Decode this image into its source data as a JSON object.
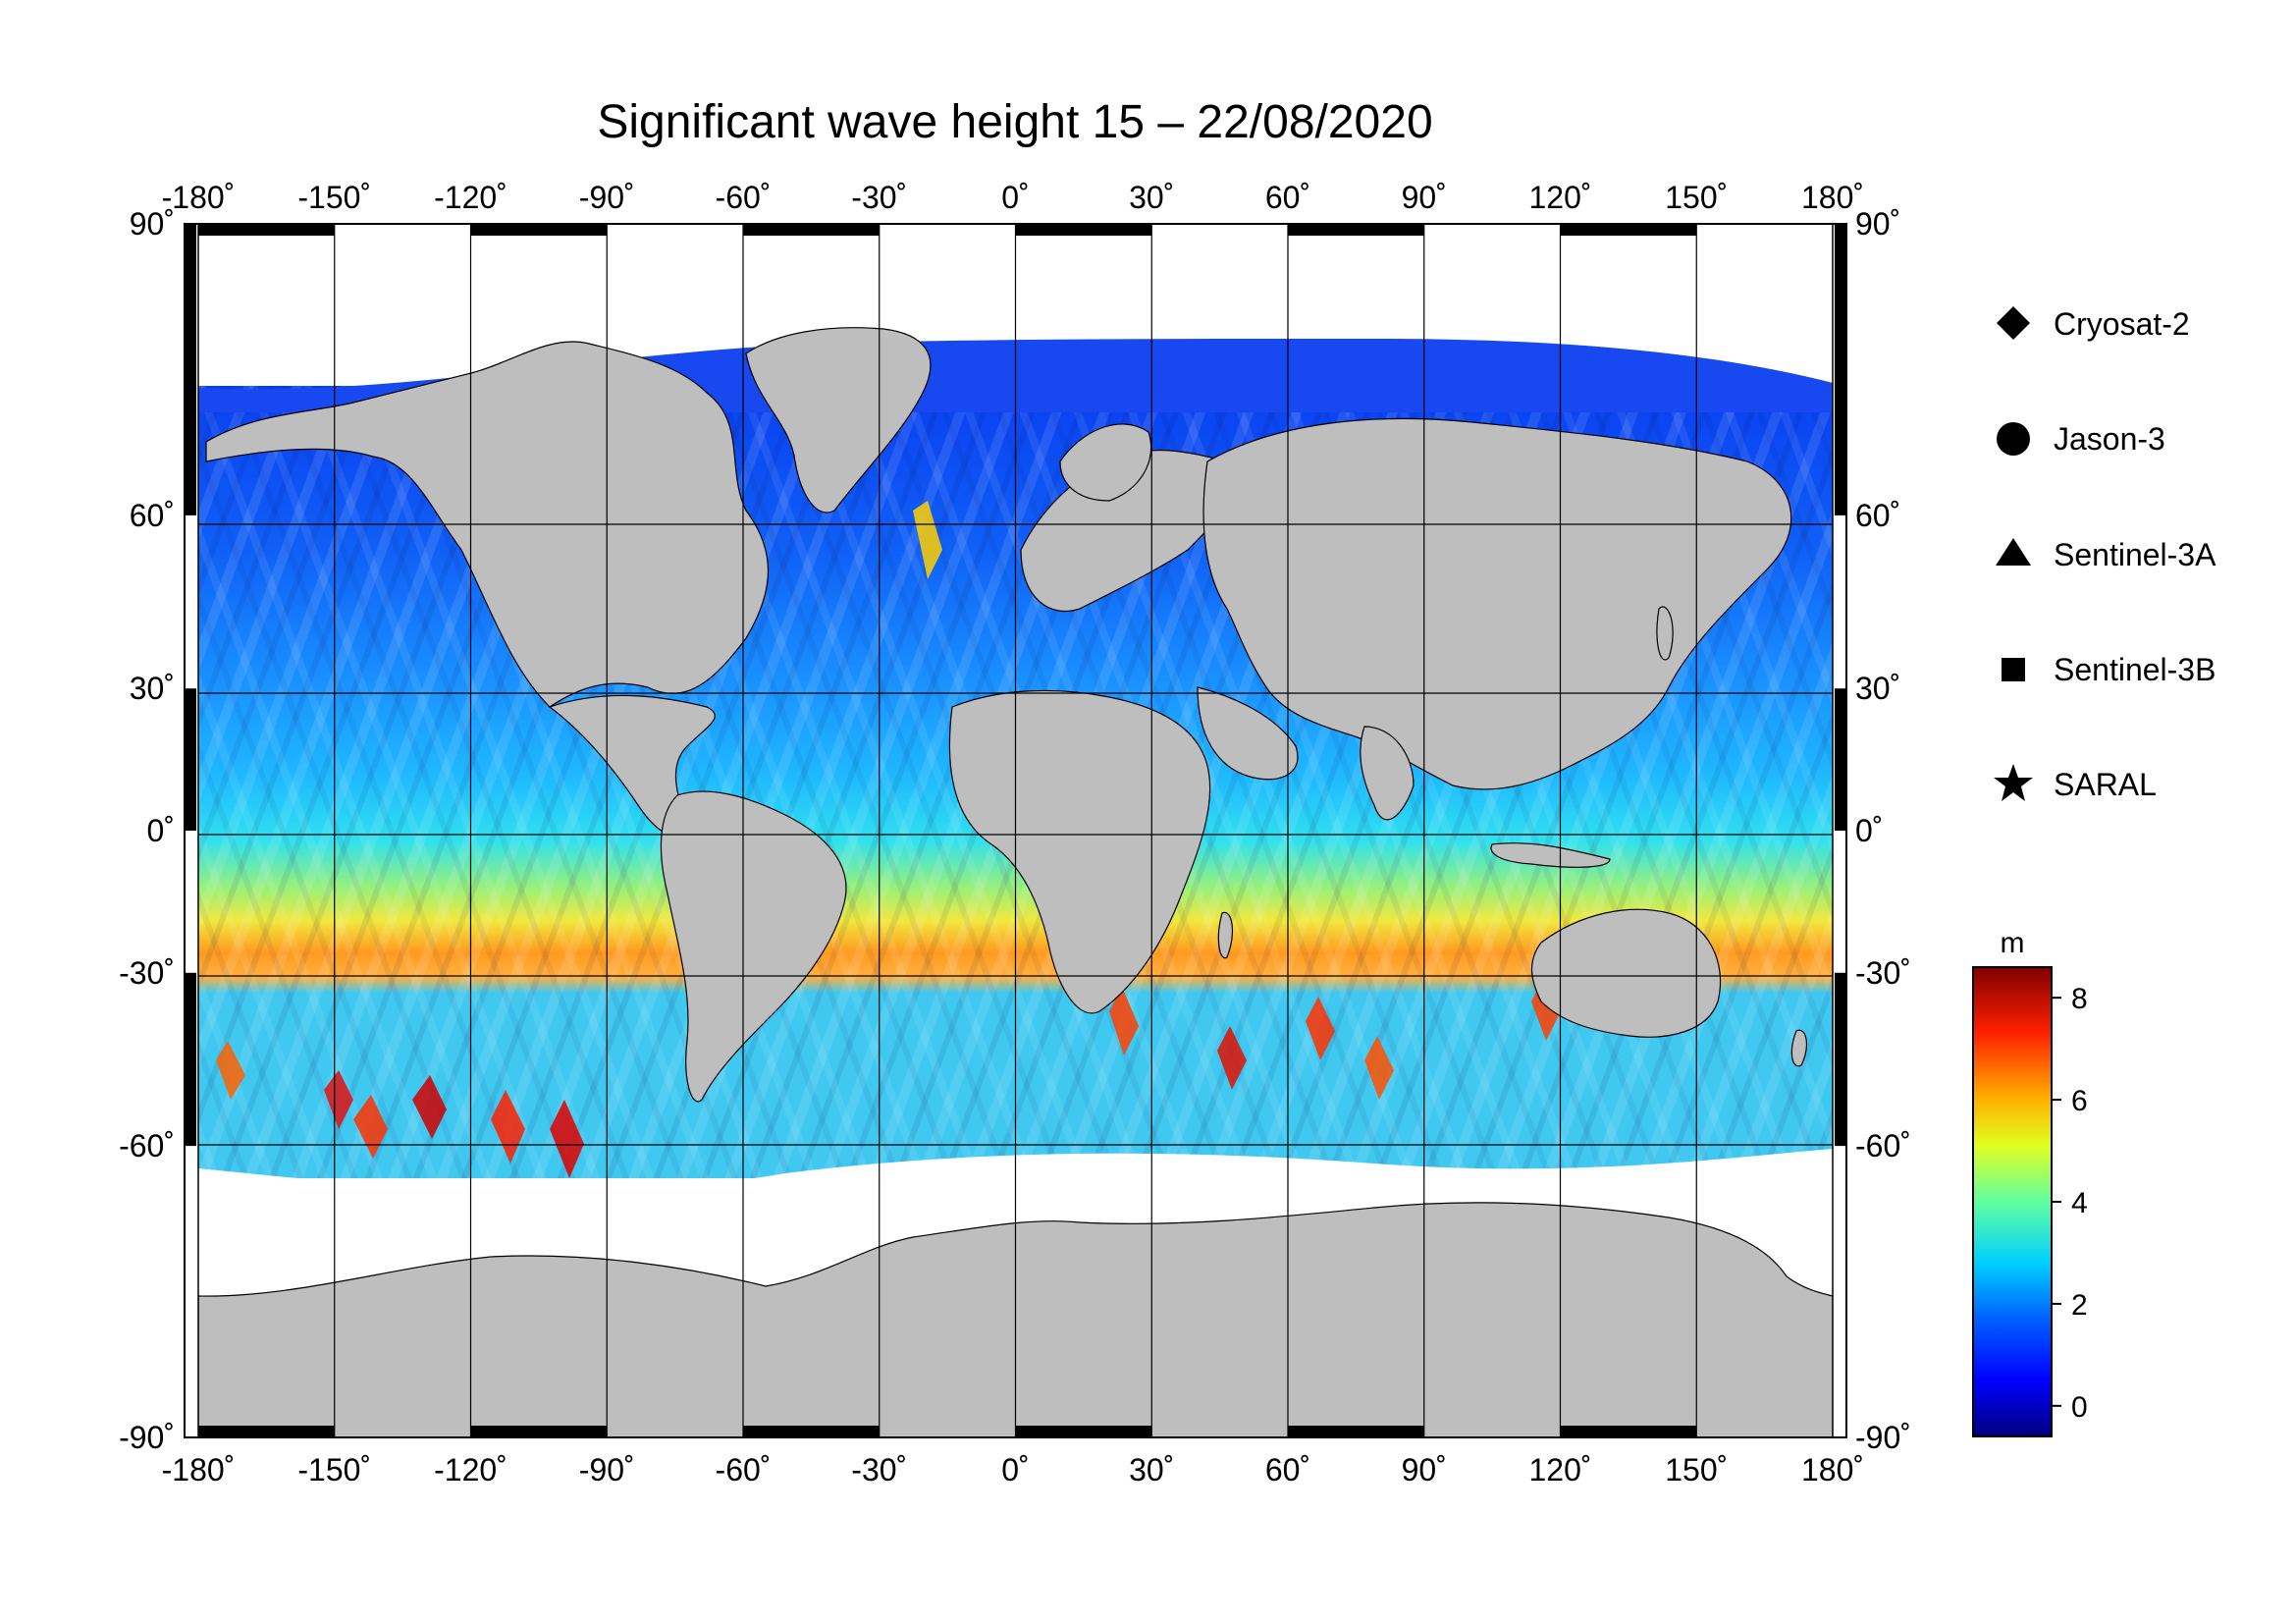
{
  "title": "Significant wave height 15 – 22/08/2020",
  "axes": {
    "lon_ticks": [
      "-180˚",
      "-150˚",
      "-120˚",
      "-90˚",
      "-60˚",
      "-30˚",
      "0˚",
      "30˚",
      "60˚",
      "90˚",
      "120˚",
      "150˚",
      "180˚"
    ],
    "lon_values": [
      -180,
      -150,
      -120,
      -90,
      -60,
      -30,
      0,
      30,
      60,
      90,
      120,
      150,
      180
    ],
    "lat_ticks": [
      "90˚",
      "60˚",
      "30˚",
      "0˚",
      "-30˚",
      "-60˚",
      "-90˚"
    ],
    "lat_values": [
      90,
      60,
      30,
      0,
      -30,
      -60,
      -90
    ],
    "lon_range": [
      -180,
      180
    ],
    "lat_range": [
      -90,
      90
    ],
    "grid": true
  },
  "legend": {
    "placement": "right",
    "items": [
      {
        "label": "Cryosat-2",
        "marker": "diamond"
      },
      {
        "label": "Jason-3",
        "marker": "circle"
      },
      {
        "label": "Sentinel-3A",
        "marker": "triangle"
      },
      {
        "label": "Sentinel-3B",
        "marker": "square"
      },
      {
        "label": "SARAL",
        "marker": "star"
      }
    ]
  },
  "colorbar": {
    "unit": "m",
    "ticks": [
      "0",
      "2",
      "4",
      "6",
      "8"
    ],
    "tick_values": [
      0,
      2,
      4,
      6,
      8
    ],
    "range": [
      -0.6,
      8.6
    ],
    "colormap": [
      "#00007f",
      "#0000ff",
      "#007fff",
      "#00ffff",
      "#7fff7f",
      "#ffff00",
      "#ff7f00",
      "#ff0000",
      "#7f0000"
    ]
  },
  "colors": {
    "land": "#bebebe",
    "ice": "#ffffff",
    "grid": "#000000"
  }
}
